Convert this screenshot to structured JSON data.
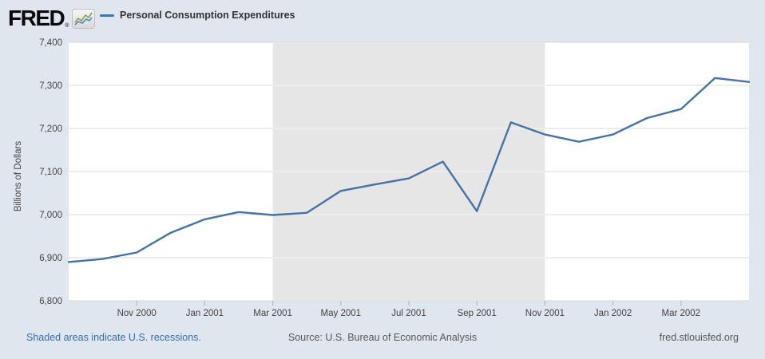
{
  "header": {
    "logo_text": "FRED",
    "logo_registered": "®",
    "legend_label": "Personal Consumption Expenditures"
  },
  "y_axis_title": "Billions of Dollars",
  "footer": {
    "recessions_note": "Shaded areas indicate U.S. recessions.",
    "source": "Source: U.S. Bureau of Economic Analysis",
    "site": "fred.stlouisfed.org"
  },
  "chart_data": {
    "type": "line",
    "title": "Personal Consumption Expenditures",
    "ylabel": "Billions of Dollars",
    "x": [
      "Sep 2000",
      "Oct 2000",
      "Nov 2000",
      "Dec 2000",
      "Jan 2001",
      "Feb 2001",
      "Mar 2001",
      "Apr 2001",
      "May 2001",
      "Jun 2001",
      "Jul 2001",
      "Aug 2001",
      "Sep 2001",
      "Oct 2001",
      "Nov 2001",
      "Dec 2001",
      "Jan 2002",
      "Feb 2002",
      "Mar 2002",
      "Apr 2002",
      "May 2002"
    ],
    "values": [
      6890,
      6897,
      6912,
      6958,
      6989,
      7006,
      6999,
      7004,
      7055,
      7070,
      7084,
      7123,
      7008,
      7214,
      7186,
      7169,
      7186,
      7224,
      7245,
      7317,
      7308
    ],
    "series_name": "Personal Consumption Expenditures",
    "ylim": [
      6800,
      7400
    ],
    "ytick_step": 100,
    "ytick_labels": [
      "6,800",
      "6,900",
      "7,000",
      "7,100",
      "7,200",
      "7,300",
      "7,400"
    ],
    "xtick_labels": [
      "Nov 2000",
      "Jan 2001",
      "Mar 2001",
      "May 2001",
      "Jul 2001",
      "Sep 2001",
      "Nov 2001",
      "Jan 2002",
      "Mar 2002"
    ],
    "recession_band": {
      "start": "Mar 2001",
      "end": "Nov 2001"
    },
    "grid": "horizontal",
    "legend_position": "top-left",
    "colors": {
      "line": "#4572a7",
      "band": "#e6e6e6",
      "grid": "#d8d8d8",
      "tick": "#a9b2bc",
      "plot_bg": "#ffffff",
      "page_bg": "#dfe6ed",
      "link": "#3c6ca8"
    }
  }
}
